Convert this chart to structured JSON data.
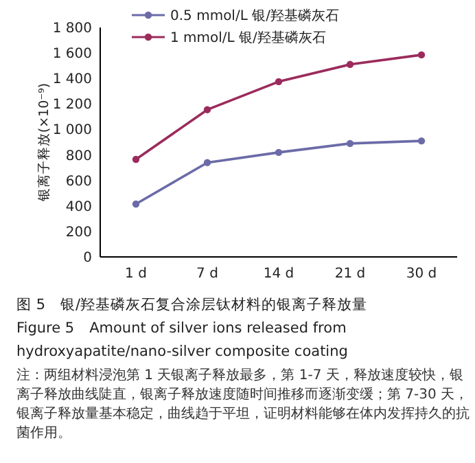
{
  "chart_data": {
    "type": "line",
    "title": "图 5　银/羟基磷灰石复合涂层钛材料的银离子释放量",
    "subtitle": "Figure 5　Amount of silver ions released from hydroxyapatite/nano-silver composite coating",
    "ylabel": "银离子释放(×10⁻⁹)",
    "annotations": [
      "注：两组材料浸泡第 1 天银离子释放最多，第 1-7 天，释放速度较快，银离子释放曲线陡直，银离子释放速度随时间推移而逐渐变缓；第 7-30 天，银离子释放量基本稳定，曲线趋于平坦，证明材料能够在体内发挥持久的抗菌作用。"
    ],
    "categories": [
      "1 d",
      "7 d",
      "14 d",
      "21 d",
      "30 d"
    ],
    "series": [
      {
        "name": "0.5 mmol/L 银/羟基磷灰石",
        "color": "#6b6ba8",
        "values": [
          415,
          740,
          820,
          890,
          910
        ]
      },
      {
        "name": "1 mmol/L 银/羟基磷灰石",
        "color": "#9b2b5c",
        "values": [
          765,
          1155,
          1375,
          1510,
          1585
        ]
      }
    ],
    "ylim": [
      0,
      1800
    ],
    "yticks": [
      0,
      {
        "value": 200,
        "label": "200"
      },
      400,
      600,
      800,
      {
        "value": 1000,
        "label": "1 000"
      },
      {
        "value": 1200,
        "label": "1 200"
      },
      {
        "value": 1400,
        "label": "1 400"
      },
      {
        "value": 1600,
        "label": "1 600"
      },
      {
        "value": 1800,
        "label": "1 800"
      }
    ],
    "grid": false,
    "legend": "top left",
    "marker": "circle",
    "line_style": "solid"
  }
}
